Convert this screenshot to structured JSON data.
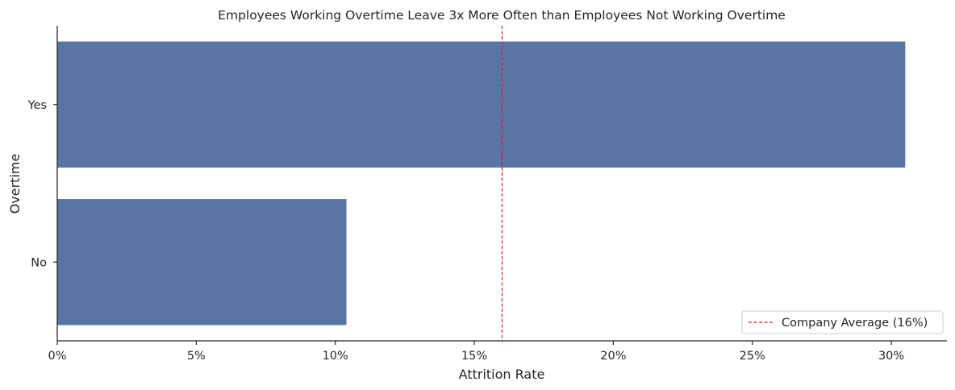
{
  "chart_data": {
    "type": "bar",
    "orientation": "horizontal",
    "title": "Employees Working Overtime Leave 3x More Often than Employees Not Working Overtime",
    "xlabel": "Attrition Rate",
    "ylabel": "Overtime",
    "categories": [
      "Yes",
      "No"
    ],
    "values": [
      0.305,
      0.104
    ],
    "xlim": [
      0,
      0.32
    ],
    "xticks": [
      0,
      0.05,
      0.1,
      0.15,
      0.2,
      0.25,
      0.3
    ],
    "xtick_labels": [
      "0%",
      "5%",
      "10%",
      "15%",
      "20%",
      "25%",
      "30%"
    ],
    "bar_color": "#5875a4",
    "reference_line": {
      "value": 0.16,
      "label": "Company Average (16%)",
      "color": "#e41a1c",
      "style": "dashed"
    },
    "legend": "bottom-right",
    "grid": false
  }
}
